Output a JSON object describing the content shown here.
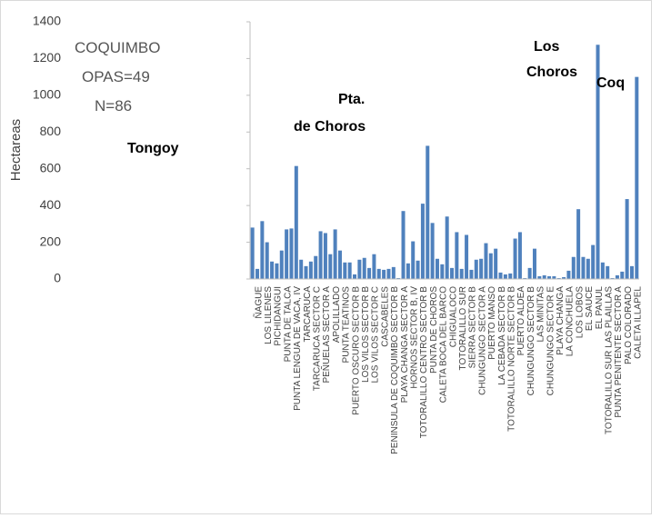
{
  "chart_data": {
    "type": "bar",
    "y_label": "Hectareas",
    "annotations": [
      "COQUIMBO",
      "OPAS=49",
      "N=86",
      "Tongoy",
      "Pta.",
      "de Choros",
      "Los",
      "Choros",
      "Coq"
    ],
    "categories": [
      "ÑAGUE",
      null,
      "LOS LILENES",
      null,
      "PICHIDANGUI",
      null,
      "PUNTA DE TALCA",
      null,
      "PUNTA LENGUA DE VACA, IV",
      null,
      "TARCARUCA",
      null,
      "TARCARUCA SECTOR C",
      null,
      "PEÑUELAS SECTOR A",
      null,
      "APOLILLADO",
      null,
      "PUNTA TEATINOS",
      null,
      "PUERTO OSCURO SECTOR B",
      null,
      "LOS VILOS SECTOR B",
      null,
      "LOS VILOS SECTOR C",
      null,
      "CASCABELES",
      null,
      "PENINSULA DE COQUIMBO SECTOR B",
      null,
      "PLAYA CHANGA SECTOR A",
      null,
      "HORNOS SECTOR B, IV",
      null,
      "TOTORALILLO CENTRO SECTOR B",
      null,
      "PUNTA DE CHOROS",
      null,
      "CALETA BOCA DEL BARCO",
      null,
      "CHIGUALOCO",
      null,
      "TOTORALILLO SUR",
      null,
      "SIERRA SECTOR B",
      null,
      "CHUNGUNGO SECTOR A",
      null,
      "PUERTO MANSO",
      null,
      "LA CEBADA SECTOR B",
      null,
      "TOTORALILLO NORTE SECTOR B",
      null,
      "PUERTO ALDEA",
      null,
      "CHUNGUNGO SECTOR B",
      null,
      "LAS MINITAS",
      null,
      "CHUNGUNGO SECTOR E",
      null,
      "PLAYA CHANGA",
      null,
      "LA CONCHUELA",
      null,
      "LOS LOBOS",
      null,
      "EL SAUCE",
      null,
      "EL PANUL",
      null,
      "TOTORALILLO SUR LAS PLAILLAS",
      null,
      "PUNTA PENITENTE SECTOR A",
      null,
      "PALO COLORADO",
      null,
      "CALETA ILLAPEL",
      null
    ],
    "values": [
      280,
      55,
      315,
      200,
      95,
      85,
      155,
      270,
      275,
      615,
      105,
      70,
      95,
      125,
      260,
      250,
      135,
      270,
      155,
      90,
      90,
      25,
      105,
      115,
      60,
      135,
      55,
      50,
      55,
      65,
      5,
      370,
      85,
      205,
      100,
      410,
      725,
      305,
      110,
      80,
      340,
      60,
      255,
      55,
      240,
      50,
      105,
      110,
      195,
      140,
      165,
      35,
      25,
      30,
      220,
      255,
      5,
      60,
      165,
      15,
      20,
      15,
      15,
      5,
      10,
      45,
      120,
      380,
      120,
      110,
      185,
      1275,
      90,
      70,
      5,
      20,
      40,
      435,
      70,
      1100
    ],
    "color": "#4f81bd",
    "ylim": [
      0,
      1400
    ],
    "yticks": [
      0,
      200,
      400,
      600,
      800,
      1000,
      1200,
      1400
    ],
    "grid": false
  }
}
